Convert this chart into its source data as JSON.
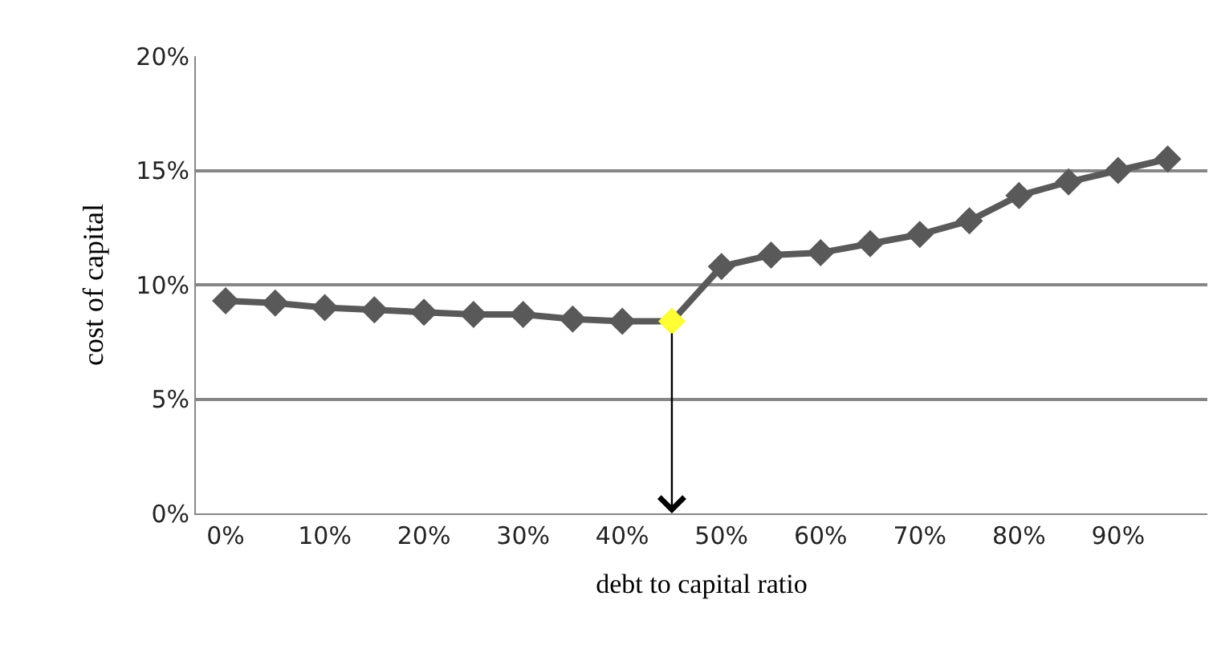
{
  "chart_data": {
    "type": "line",
    "xlabel": "debt to capital ratio",
    "ylabel": "cost of capital",
    "x": [
      0,
      5,
      10,
      15,
      20,
      25,
      30,
      35,
      40,
      45,
      50,
      55,
      60,
      65,
      70,
      75,
      80,
      85,
      90,
      95
    ],
    "series": [
      {
        "color": "#595959",
        "colors": [
          "#595959",
          "#595959",
          "#595959",
          "#595959",
          "#595959",
          "#595959",
          "#595959",
          "#595959",
          "#595959",
          "#ffff33",
          "#595959",
          "#595959",
          "#595959",
          "#595959",
          "#595959",
          "#595959",
          "#595959",
          "#595959",
          "#595959",
          "#595959"
        ],
        "values": [
          9.3,
          9.2,
          9.0,
          8.9,
          8.8,
          8.7,
          8.7,
          8.5,
          8.4,
          8.4,
          10.8,
          11.3,
          11.4,
          11.8,
          12.2,
          12.8,
          13.9,
          14.5,
          15.0,
          15.5
        ]
      }
    ],
    "ref_lines": [
      {
        "axis": "x",
        "value": 45,
        "color": "#000000"
      }
    ],
    "xlim": [
      -3,
      99
    ],
    "xticks": [
      {
        "value": 0,
        "label": "0%"
      },
      {
        "value": 10,
        "label": "10%"
      },
      {
        "value": 20,
        "label": "20%"
      },
      {
        "value": 30,
        "label": "30%"
      },
      {
        "value": 40,
        "label": "40%"
      },
      {
        "value": 50,
        "label": "50%"
      },
      {
        "value": 60,
        "label": "60%"
      },
      {
        "value": 70,
        "label": "70%"
      },
      {
        "value": 80,
        "label": "80%"
      },
      {
        "value": 90,
        "label": "90%"
      }
    ],
    "ylim": [
      0,
      20
    ],
    "yticks": [
      {
        "value": 0,
        "label": "0%"
      },
      {
        "value": 5,
        "label": "5%"
      },
      {
        "value": 10,
        "label": "10%"
      },
      {
        "value": 15,
        "label": "15%"
      },
      {
        "value": 20,
        "label": "20%"
      }
    ],
    "grid": "y",
    "legend": false,
    "marker": "diamond",
    "line_style": "solid"
  }
}
